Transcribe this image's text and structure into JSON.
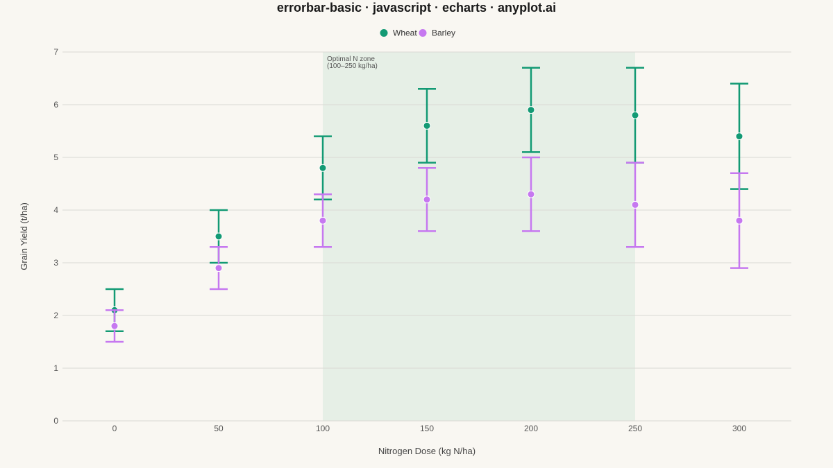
{
  "chart_data": {
    "type": "scatter",
    "subtype": "errorbar",
    "title": "errorbar-basic · javascript · echarts · anyplot.ai",
    "xlabel": "Nitrogen Dose (kg N/ha)",
    "ylabel": "Grain Yield (t/ha)",
    "x": [
      0,
      50,
      100,
      150,
      200,
      250,
      300
    ],
    "x_ticks": [
      "0",
      "50",
      "100",
      "150",
      "200",
      "250",
      "300"
    ],
    "y_ticks": [
      "0",
      "1",
      "2",
      "3",
      "4",
      "5",
      "6",
      "7"
    ],
    "ylim": [
      0,
      7
    ],
    "grid": true,
    "legend_position": "top-center",
    "band": {
      "x_range": [
        100,
        250
      ],
      "label_line1": "Optimal N zone",
      "label_line2": "(100–250 kg/ha)",
      "color": "#e6efe6"
    },
    "series": [
      {
        "name": "Wheat",
        "color": "#139a74",
        "values": [
          2.1,
          3.5,
          4.8,
          5.6,
          5.9,
          5.8,
          5.4
        ],
        "lower": [
          1.7,
          3.0,
          4.2,
          4.9,
          5.1,
          4.9,
          4.4
        ],
        "upper": [
          2.5,
          4.0,
          5.4,
          6.3,
          6.7,
          6.7,
          6.4
        ]
      },
      {
        "name": "Barley",
        "color": "#c678f0",
        "values": [
          1.8,
          2.9,
          3.8,
          4.2,
          4.3,
          4.1,
          3.8
        ],
        "lower": [
          1.5,
          2.5,
          3.3,
          3.6,
          3.6,
          3.3,
          2.9
        ],
        "upper": [
          2.1,
          3.3,
          4.3,
          4.8,
          5.0,
          4.9,
          4.7
        ]
      }
    ]
  }
}
